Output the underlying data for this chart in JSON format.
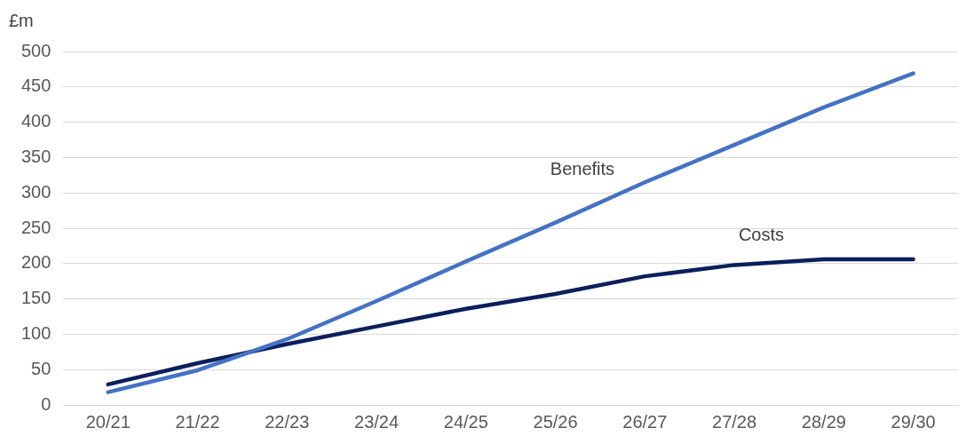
{
  "chart_data": {
    "type": "line",
    "ylabel": "£m",
    "categories": [
      "20/21",
      "21/22",
      "22/23",
      "23/24",
      "24/25",
      "25/26",
      "26/27",
      "27/28",
      "28/29",
      "29/30"
    ],
    "series": [
      {
        "name": "Benefits",
        "color": "#4472c4",
        "values": [
          18,
          49,
          93,
          147,
          203,
          258,
          315,
          368,
          421,
          469
        ]
      },
      {
        "name": "Costs",
        "color": "#0b1f5c",
        "values": [
          29,
          59,
          86,
          111,
          136,
          157,
          182,
          198,
          206,
          206
        ]
      }
    ],
    "ylim": [
      0,
      500
    ],
    "yticks": [
      0,
      50,
      100,
      150,
      200,
      250,
      300,
      350,
      400,
      450,
      500
    ],
    "grid": "y",
    "legend": false,
    "marker": "none",
    "line_style": "solid"
  }
}
